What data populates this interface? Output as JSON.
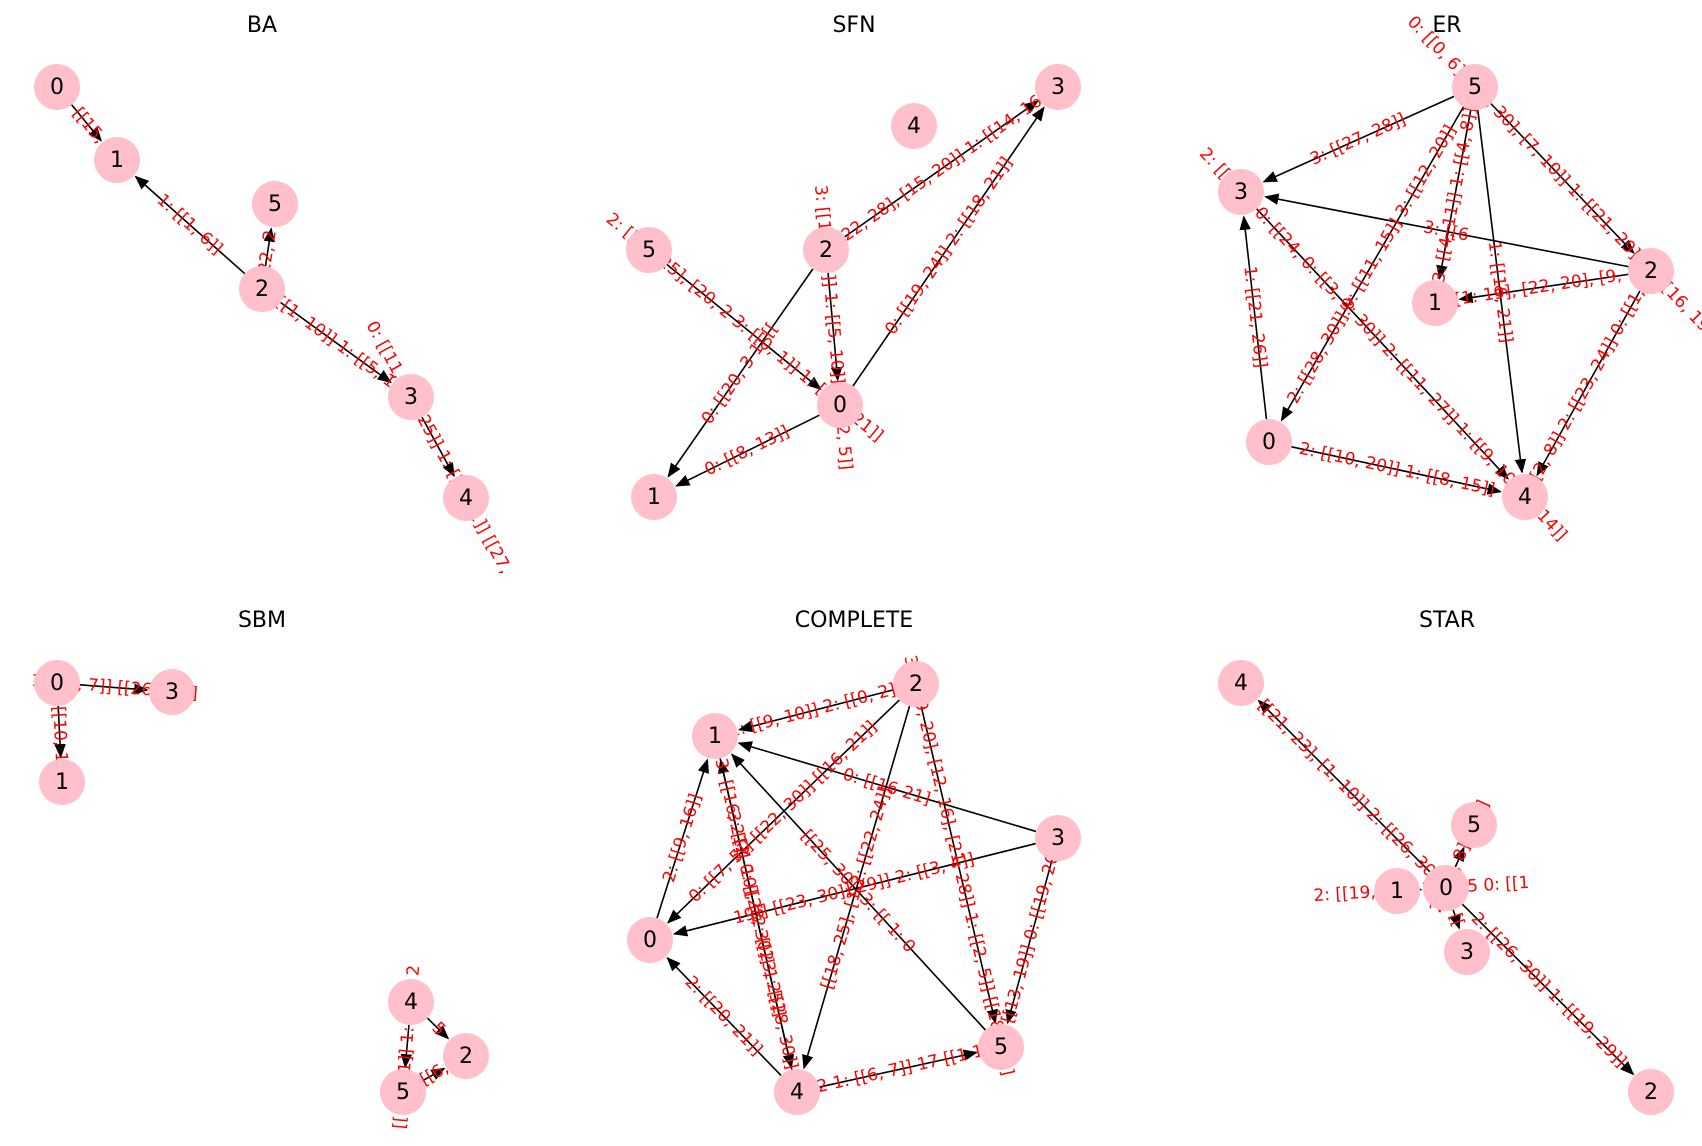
{
  "style": {
    "node_color": "#ffc0cb",
    "edge_color": "#000000",
    "edge_label_color": "#ff0000"
  },
  "panels": [
    {
      "id": "ba",
      "title": "BA",
      "nodes": [
        "0",
        "1",
        "2",
        "3",
        "4",
        "5"
      ],
      "edges": [
        {
          "source": "0",
          "target": "1",
          "label": "0: [[15, 2"
        },
        {
          "source": "2",
          "target": "1",
          "label": "1: [[1, 6]]"
        },
        {
          "source": "2",
          "target": "5",
          "label": "0: [[22, 2 [[17,"
        },
        {
          "source": "2",
          "target": "3",
          "label": "0: [[1, 10]] 1: [[5, 13]]"
        },
        {
          "source": "3",
          "target": "4",
          "label": "0: [[11, [16, 25]] 1: [[7, 11]] [[27,"
        }
      ]
    },
    {
      "id": "sfn",
      "title": "SFN",
      "nodes": [
        "0",
        "1",
        "2",
        "3",
        "4",
        "5"
      ],
      "edges": [
        {
          "source": "0",
          "target": "3",
          "label": "0: [[19, 24]] 2: [[18, 21]]"
        },
        {
          "source": "2",
          "target": "3",
          "label": "[[22, 28], [15, 20]] 1: [[14, 16]]"
        },
        {
          "source": "2",
          "target": "0",
          "label": "3: [[12, 18]] 1: [[5, 10]] 0: [[2, 5]]"
        },
        {
          "source": "5",
          "target": "0",
          "label": "2: [[24, 25], [20, 2 3: [[0, 1]] 1: [[20, 21]]"
        },
        {
          "source": "2",
          "target": "1",
          "label": "0: [[20, 3 1: [["
        },
        {
          "source": "0",
          "target": "1",
          "label": "0: [[8, 13]]"
        }
      ]
    },
    {
      "id": "er",
      "title": "ER",
      "nodes": [
        "0",
        "1",
        "2",
        "3",
        "4",
        "5"
      ],
      "edges": [
        {
          "source": "5",
          "target": "3",
          "label": "3: [[27, 28]]"
        },
        {
          "source": "5",
          "target": "2",
          "label": "0: [[0, 6], [28, 30], [7, 10]] 1: [[21, 29]] 2: [[16, 19]]"
        },
        {
          "source": "5",
          "target": "1",
          "label": "3: [[4, 11]] 1: [[4, 8]]"
        },
        {
          "source": "5",
          "target": "0",
          "label": "2: [[28, 30]] 0: [[11, 15]] 3: [[12, 20]]"
        },
        {
          "source": "0",
          "target": "3",
          "label": "1: [[21, 26]]"
        },
        {
          "source": "2",
          "target": "3",
          "label": "3: [[6"
        },
        {
          "source": "2",
          "target": "1",
          "label": "[[1: 19], [22, 20], [9, 1"
        },
        {
          "source": "5",
          "target": "4",
          "label": "1: [[16, 21]]"
        },
        {
          "source": "3",
          "target": "4",
          "label": "2: [[28 [[ 0: [[24, 0: [[3, 3: 30]] 2: [[11, 27]] 1: [[9, 10]] 1: 14]]"
        },
        {
          "source": "2",
          "target": "4",
          "label": "3: [[2, 8]] 2: [[23, 24]] 0: [[1, 7]]"
        },
        {
          "source": "0",
          "target": "4",
          "label": "2: [[10, 20]] 1: [[8, 15]]"
        }
      ]
    },
    {
      "id": "sbm",
      "title": "SBM",
      "nodes": [
        "0",
        "1",
        "2",
        "3",
        "4",
        "5"
      ],
      "edges": [
        {
          "source": "0",
          "target": "3",
          "label": "1: [[5, 7]] [[26, 29]]"
        },
        {
          "source": "0",
          "target": "1",
          "label": "1: 2: [[10, 1 28]]"
        },
        {
          "source": "4",
          "target": "5",
          "label": "[[11, 21]] 1: [[12, 2"
        },
        {
          "source": "4",
          "target": "2",
          "label": "5"
        },
        {
          "source": "5",
          "target": "2",
          "label": "[[6,"
        }
      ]
    },
    {
      "id": "complete",
      "title": "COMPLETE",
      "nodes": [
        "0",
        "1",
        "2",
        "3",
        "4",
        "5"
      ],
      "edges": [
        {
          "source": "2",
          "target": "1",
          "label": "1: [[9, 10]] 2: [[0, 2]]"
        },
        {
          "source": "0",
          "target": "1",
          "label": "2: [[9, 16]]"
        },
        {
          "source": "4",
          "target": "1",
          "label": "3: [[2, 10], [ 2: [[23, 25]]"
        },
        {
          "source": "5",
          "target": "1",
          "label": "[[25, 30]] 3: [[ 1: 0"
        },
        {
          "source": "3",
          "target": "1",
          "label": "0: [[16 21]"
        },
        {
          "source": "2",
          "target": "0",
          "label": "0: [[7, 5]] [[22, 30]] [[16, 21]]"
        },
        {
          "source": "3",
          "target": "0",
          "label": "19]] [[23, 30]] 29]] 2: [[3, 4]]"
        },
        {
          "source": "2",
          "target": "5",
          "label": "3: [[19, 20], [12, 16], [21, 28]] 1: [[2, 5]] [[18, 22]]"
        },
        {
          "source": "2",
          "target": "4",
          "label": "[[18, 25], [1 2: [[22, 24]]"
        },
        {
          "source": "3",
          "target": "5",
          "label": "1: [[13, 19]] 0: [[19, 20]]"
        },
        {
          "source": "4",
          "target": "0",
          "label": "2: [[20, 21]]"
        },
        {
          "source": "1",
          "target": "4",
          "label": "3: [[16, 21]] 0: [[28, 30]] 1: [[28, 30]]"
        },
        {
          "source": "4",
          "target": "5",
          "label": "[[2 1: [[6, 7]] 17 [[1 11"
        }
      ]
    },
    {
      "id": "star",
      "title": "STAR",
      "nodes": [
        "0",
        "1",
        "2",
        "3",
        "4",
        "5"
      ],
      "edges": [
        {
          "source": "0",
          "target": "4",
          "label": "0: [[21, 23], [1, 10]] 2: [[26, 30]]"
        },
        {
          "source": "0",
          "target": "5",
          "label": "2: [[7, 8]] 18]]"
        },
        {
          "source": "1",
          "target": "0",
          "label": "2: [[19, 24]] 1: [[25 0: [[1"
        },
        {
          "source": "0",
          "target": "3",
          "label": "[["
        },
        {
          "source": "0",
          "target": "2",
          "label": "2: [[26, 30]] 1: [[19, 29]]"
        }
      ]
    }
  ]
}
